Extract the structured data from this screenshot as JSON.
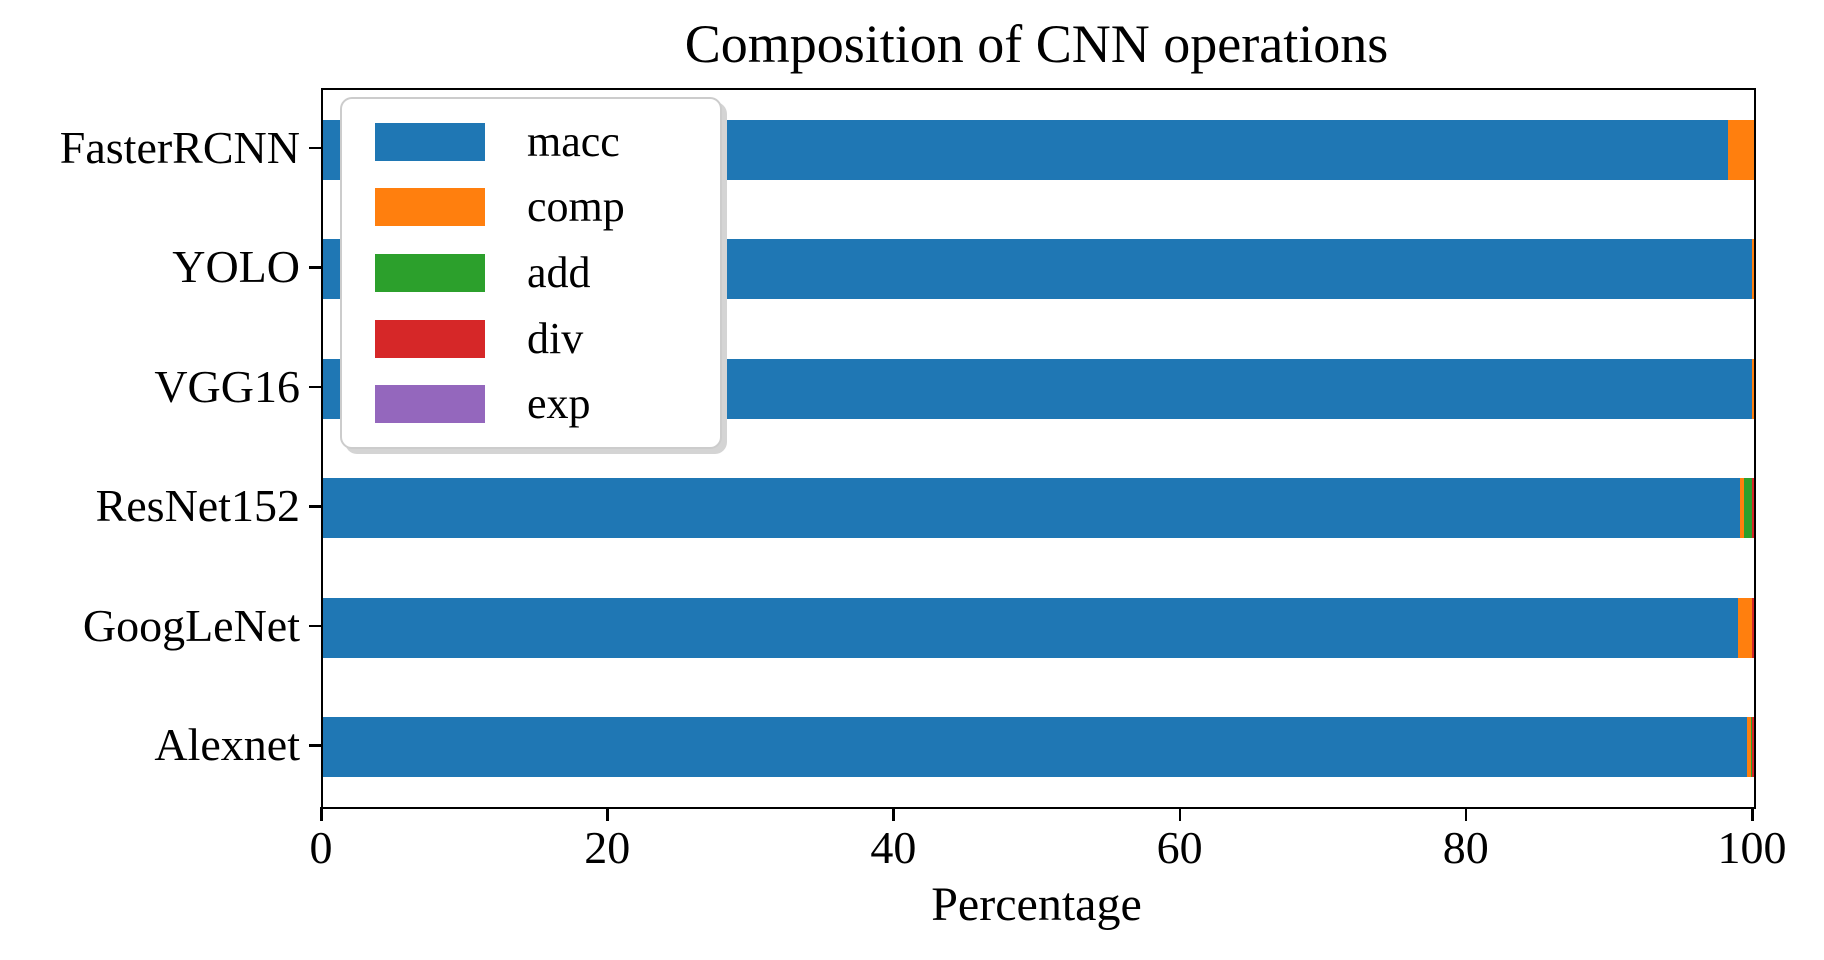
{
  "chart_data": {
    "type": "bar",
    "orientation": "horizontal",
    "stacked": true,
    "title": "Composition of CNN operations",
    "xlabel": "Percentage",
    "xlim": [
      0,
      100
    ],
    "xticks": [
      0,
      20,
      40,
      60,
      80,
      100
    ],
    "grid": false,
    "categories_top_to_bottom": [
      "FasterRCNN",
      "YOLO",
      "VGG16",
      "ResNet152",
      "GoogLeNet",
      "Alexnet"
    ],
    "series": [
      {
        "name": "macc",
        "color": "#1f77b4",
        "values": [
          98.2,
          99.85,
          99.85,
          99.0,
          98.9,
          99.5
        ]
      },
      {
        "name": "comp",
        "color": "#ff7f0e",
        "values": [
          1.8,
          0.15,
          0.15,
          0.32,
          0.96,
          0.28
        ]
      },
      {
        "name": "add",
        "color": "#2ca02c",
        "values": [
          0,
          0,
          0,
          0.52,
          0,
          0.07
        ]
      },
      {
        "name": "div",
        "color": "#d62728",
        "values": [
          0,
          0,
          0,
          0.16,
          0.14,
          0.15
        ]
      },
      {
        "name": "exp",
        "color": "#9467bd",
        "values": [
          0,
          0,
          0,
          0,
          0,
          0
        ]
      }
    ],
    "legend": {
      "position": "upper left",
      "labels": [
        "macc",
        "comp",
        "add",
        "div",
        "exp"
      ]
    }
  },
  "colors": {
    "axis": "#000000",
    "background": "#ffffff",
    "legend_border": "#cccccc",
    "legend_shadow": "#d4d4d4"
  }
}
